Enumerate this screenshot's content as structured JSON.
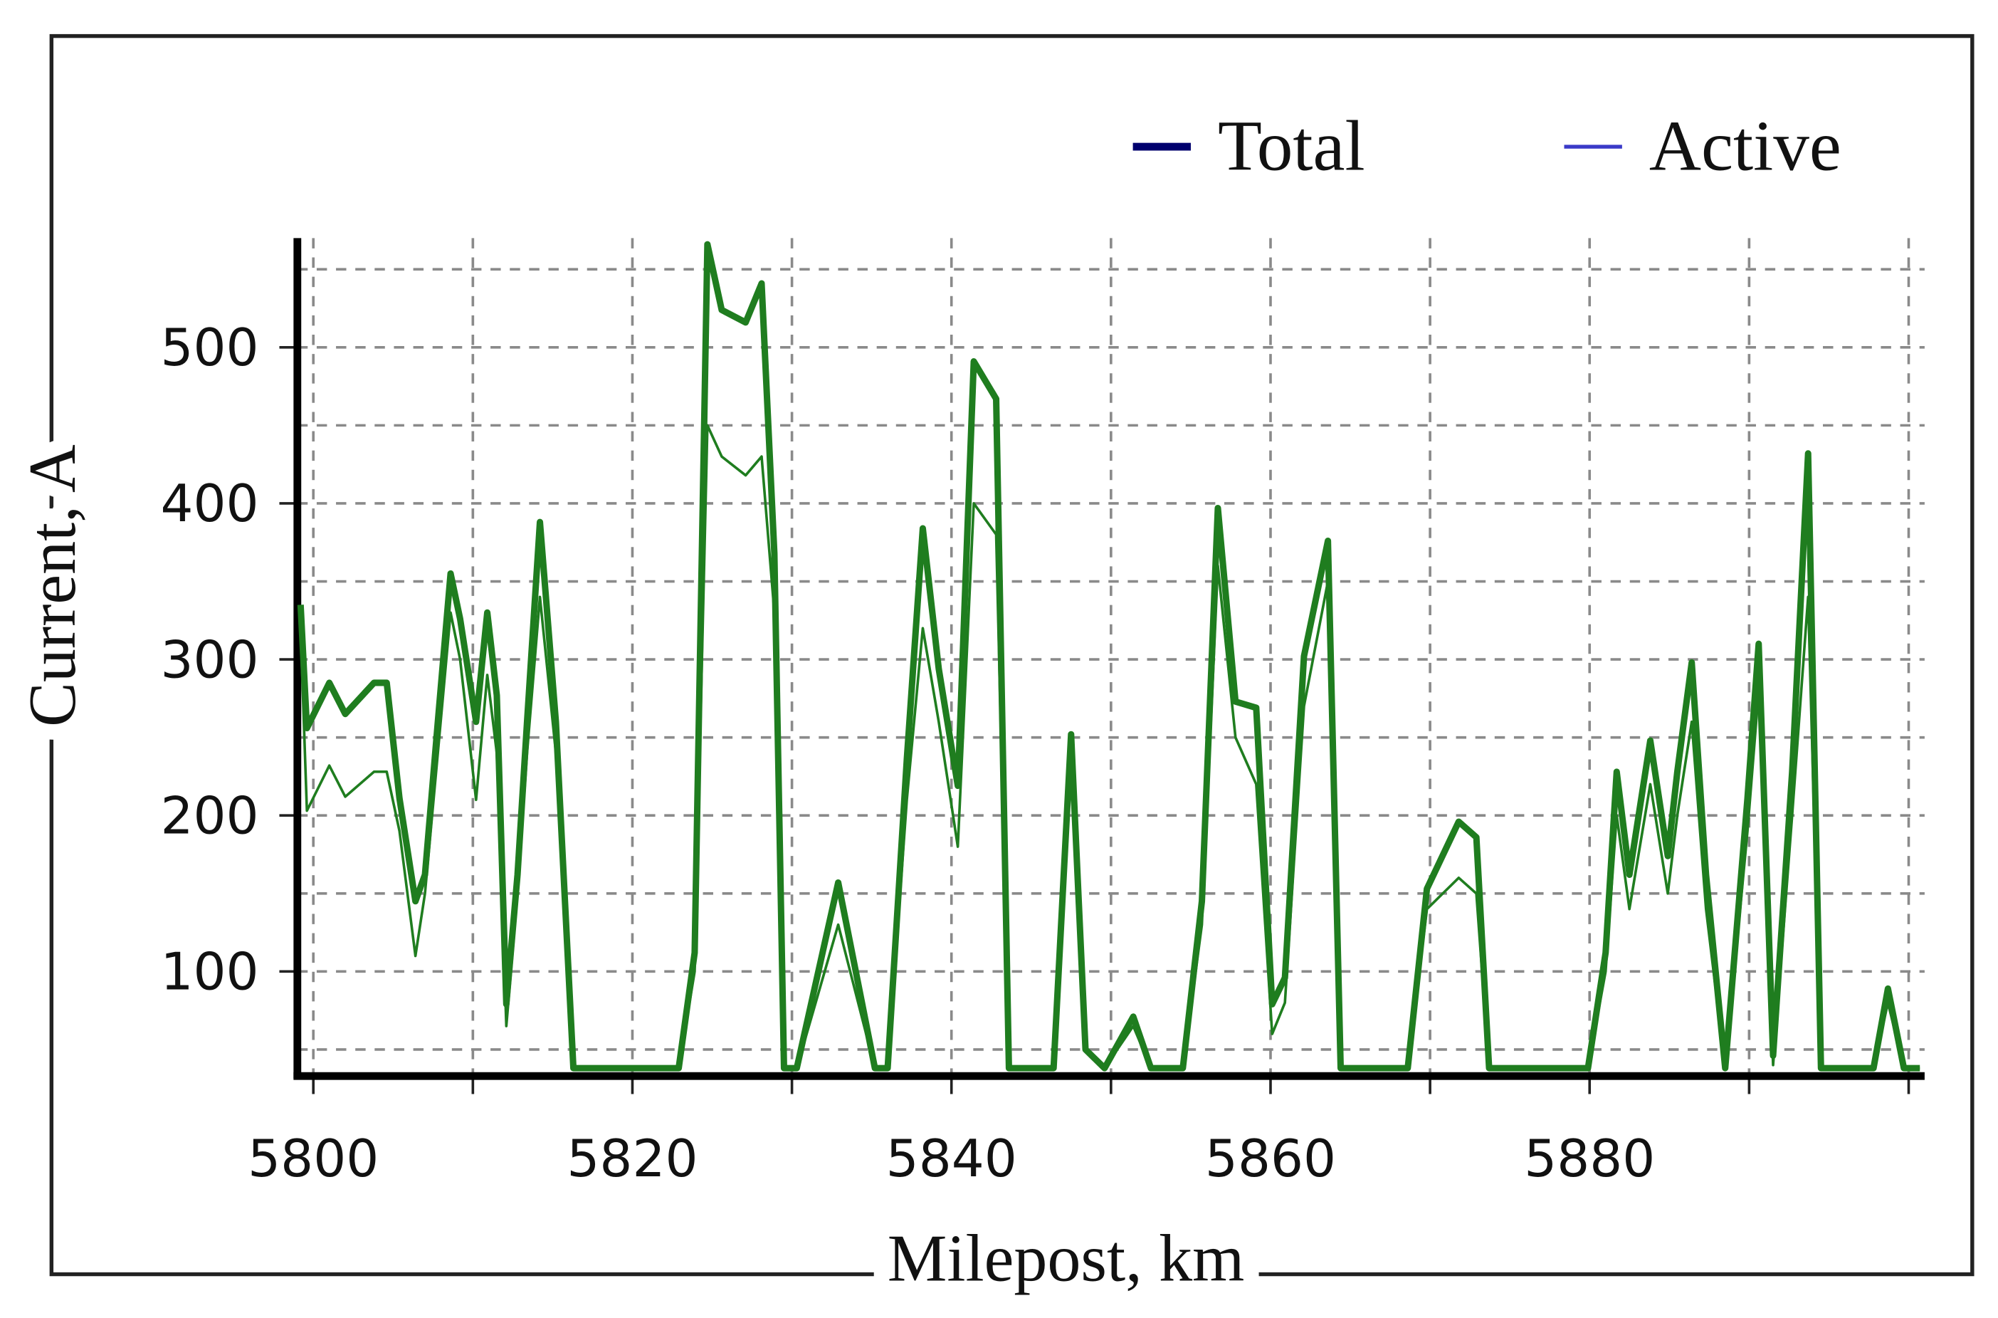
{
  "chart_data": {
    "type": "line",
    "x_label": "Milepost, km",
    "y_label": "Current, A",
    "x": [
      5799.2,
      5799.6,
      5801,
      5802,
      5803.8,
      5804.6,
      5805.4,
      5806.4,
      5807,
      5807.8,
      5808.6,
      5809.2,
      5810.2,
      5810.9,
      5811.5,
      5812.1,
      5812.8,
      5813.4,
      5814.2,
      5815.2,
      5816.3,
      5822.9,
      5823.9,
      5824.7,
      5825.6,
      5827.1,
      5828.1,
      5828.9,
      5829.5,
      5830.3,
      5832.9,
      5835.2,
      5836,
      5837.2,
      5838.2,
      5839.2,
      5840.4,
      5841.4,
      5842.8,
      5843.6,
      5846.4,
      5847.5,
      5848.4,
      5849.6,
      5851.4,
      5852.5,
      5854.5,
      5855.7,
      5856.7,
      5857.8,
      5859.1,
      5860.1,
      5860.9,
      5862.1,
      5863.6,
      5864.4,
      5868.6,
      5869.8,
      5871.8,
      5872.9,
      5873.7,
      5879.9,
      5881,
      5881.7,
      5882.5,
      5883.8,
      5884.9,
      5885.5,
      5886.4,
      5887.3,
      5888.5,
      5889.9,
      5890.6,
      5891.5,
      5892.7,
      5893.7,
      5894.5,
      5897.8,
      5898.7,
      5899.7,
      5900.7
    ],
    "series": [
      {
        "name": "Total",
        "color": "#1f7d1f",
        "legend_color": "#00006e",
        "line_width": 5,
        "values": [
          335,
          256,
          285,
          265,
          285,
          285,
          211,
          145,
          162,
          260,
          355,
          326,
          260,
          330,
          277,
          79,
          162,
          260,
          388,
          260,
          38,
          38,
          112,
          566,
          524,
          516,
          541,
          368,
          38,
          38,
          157,
          38,
          38,
          236,
          384,
          294,
          219,
          491,
          467,
          38,
          38,
          252,
          50,
          38,
          71,
          38,
          38,
          145,
          397,
          273,
          269,
          79,
          96,
          302,
          376,
          38,
          38,
          153,
          196,
          186,
          38,
          38,
          112,
          228,
          162,
          248,
          174,
          228,
          298,
          162,
          38,
          211,
          310,
          46,
          228,
          432,
          38,
          38,
          89,
          38,
          38
        ]
      },
      {
        "name": "Active",
        "color": "#1f7d1f",
        "legend_color": "#3a3ac8",
        "line_width": 2,
        "values": [
          320,
          203,
          232,
          212,
          228,
          228,
          190,
          110,
          150,
          240,
          330,
          300,
          210,
          290,
          240,
          65,
          150,
          240,
          340,
          240,
          38,
          38,
          100,
          450,
          430,
          418,
          430,
          330,
          38,
          38,
          130,
          38,
          38,
          210,
          320,
          260,
          180,
          400,
          380,
          38,
          38,
          230,
          50,
          38,
          65,
          38,
          38,
          130,
          360,
          250,
          220,
          60,
          80,
          270,
          350,
          38,
          38,
          140,
          160,
          150,
          38,
          38,
          100,
          200,
          140,
          220,
          150,
          200,
          260,
          140,
          38,
          190,
          280,
          40,
          200,
          340,
          38,
          38,
          80,
          38,
          38
        ]
      }
    ],
    "xlim": [
      5799,
      5901
    ],
    "xticks": [
      5800,
      5820,
      5840,
      5860,
      5880
    ],
    "xminor": [
      5810,
      5830,
      5850,
      5870,
      5890,
      5900
    ],
    "ylim": [
      33,
      570
    ],
    "yticks": [
      100,
      200,
      300,
      400,
      500
    ],
    "yminor": [
      50,
      150,
      250,
      350,
      450,
      550
    ],
    "grid": true,
    "legend": "top-right"
  }
}
